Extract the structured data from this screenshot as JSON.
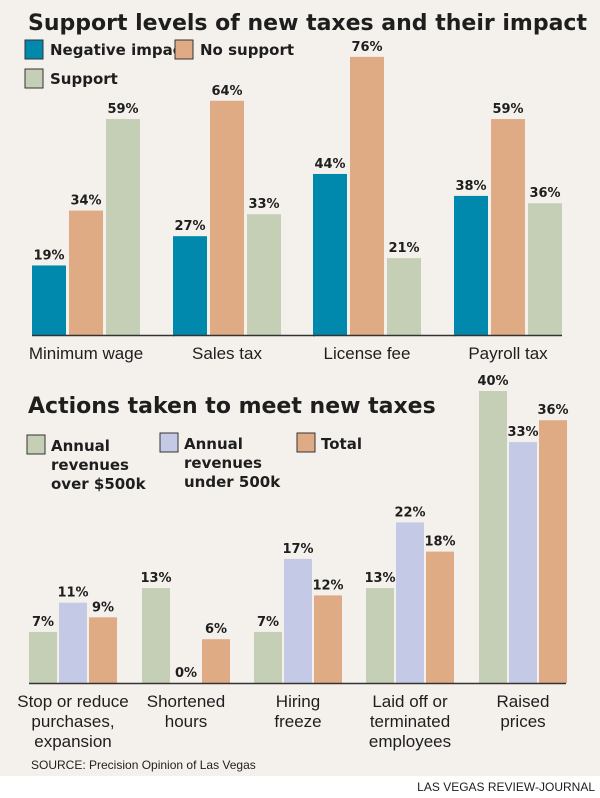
{
  "chart_data": [
    {
      "type": "bar",
      "title": "Support levels of new taxes and their impact",
      "categories": [
        "Minimum wage",
        "Sales tax",
        "License fee",
        "Payroll tax"
      ],
      "series": [
        {
          "name": "Negative impact",
          "color": "#0088ad",
          "values": [
            19,
            27,
            44,
            38
          ]
        },
        {
          "name": "No support",
          "color": "#dfab84",
          "values": [
            34,
            64,
            76,
            59
          ]
        },
        {
          "name": "Support",
          "color": "#c5cfb5",
          "values": [
            59,
            33,
            21,
            36
          ]
        }
      ],
      "value_suffix": "%",
      "xlabel": "",
      "ylabel": "",
      "ylim": [
        0,
        80
      ],
      "grid": false,
      "legend": "top-left"
    },
    {
      "type": "bar",
      "title": "Actions taken to meet new taxes",
      "categories": [
        [
          "Stop or reduce",
          "purchases,",
          "expansion"
        ],
        [
          "Shortened",
          "hours"
        ],
        [
          "Hiring",
          "freeze"
        ],
        [
          "Laid off or",
          "terminated",
          "employees"
        ],
        [
          "Raised",
          "prices"
        ]
      ],
      "series": [
        {
          "name": "Annual revenues over $500k",
          "legend_lines": [
            "Annual",
            "revenues",
            "over $500k"
          ],
          "color": "#c5cfb5",
          "values": [
            7,
            13,
            7,
            13,
            40
          ]
        },
        {
          "name": "Annual revenues under 500k",
          "legend_lines": [
            "Annual",
            "revenues",
            "under 500k"
          ],
          "color": "#c4c9e6",
          "values": [
            11,
            0,
            17,
            22,
            33
          ]
        },
        {
          "name": "Total",
          "legend_lines": [
            "Total"
          ],
          "color": "#dfab84",
          "values": [
            9,
            6,
            12,
            18,
            36
          ]
        }
      ],
      "value_suffix": "%",
      "xlabel": "",
      "ylabel": "",
      "ylim": [
        0,
        40
      ],
      "grid": false,
      "legend": "top-left"
    }
  ],
  "source": "SOURCE: Precision Opinion of Las Vegas",
  "credit": "LAS VEGAS REVIEW-JOURNAL"
}
